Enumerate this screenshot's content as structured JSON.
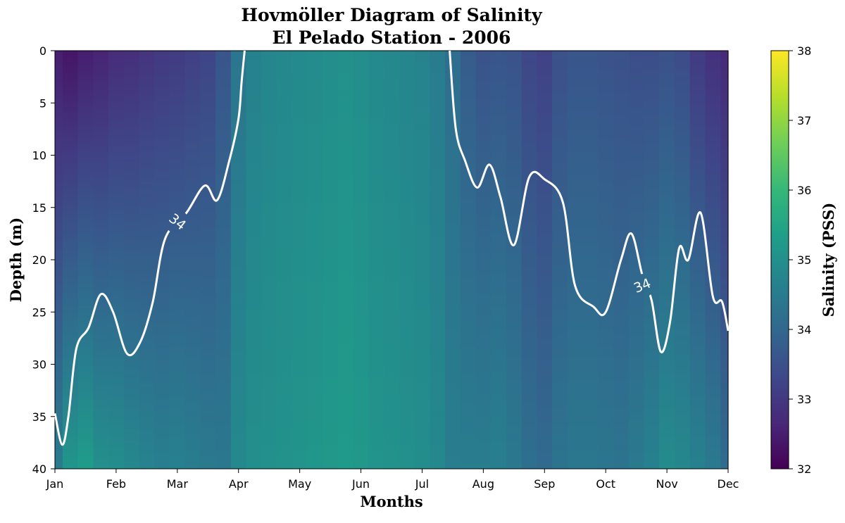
{
  "chart_data": {
    "type": "heatmap",
    "title": "Hovmöller Diagram of Salinity",
    "subtitle": "El Pelado Station - 2006",
    "xlabel": "Months",
    "ylabel": "Depth (m)",
    "colorbar_label": "Salinity (PSS)",
    "colormap": "viridis",
    "colormap_stops": [
      "#440154",
      "#482878",
      "#3e4989",
      "#31688e",
      "#26828e",
      "#1f9e89",
      "#35b779",
      "#6ece58",
      "#b5de2b",
      "#fde725"
    ],
    "x_ticks": [
      "Jan",
      "Feb",
      "Mar",
      "Apr",
      "May",
      "Jun",
      "Jul",
      "Aug",
      "Sep",
      "Oct",
      "Nov",
      "Dec"
    ],
    "xlim": [
      0,
      11
    ],
    "y_ticks": [
      0,
      5,
      10,
      15,
      20,
      25,
      30,
      35,
      40
    ],
    "ylim": [
      0,
      40
    ],
    "y_inverted": true,
    "colorbar_ticks": [
      32,
      33,
      34,
      35,
      36,
      37,
      38
    ],
    "clim": [
      32,
      38
    ],
    "salinity_field": {
      "month_index": [
        0,
        0.25,
        0.5,
        0.75,
        1,
        1.25,
        1.5,
        1.75,
        2,
        2.25,
        2.5,
        2.75,
        3,
        3.25,
        3.5,
        3.75,
        4,
        4.25,
        4.5,
        4.75,
        5,
        5.25,
        5.5,
        5.75,
        6,
        6.25,
        6.5,
        6.75,
        7,
        7.25,
        7.5,
        7.75,
        8,
        8.25,
        8.5,
        8.75,
        9,
        9.25,
        9.5,
        9.75,
        10,
        10.25,
        10.5,
        10.75,
        11
      ],
      "surface_salinity": [
        32.5,
        32.35,
        32.5,
        32.6,
        32.75,
        32.8,
        32.9,
        33.0,
        33.05,
        33.15,
        33.25,
        33.6,
        34.35,
        34.65,
        34.75,
        34.8,
        34.85,
        34.9,
        34.95,
        35.0,
        34.95,
        34.85,
        34.8,
        34.75,
        34.7,
        34.5,
        34.15,
        33.75,
        33.55,
        33.6,
        33.55,
        33.3,
        33.2,
        33.5,
        33.6,
        33.6,
        33.55,
        33.5,
        33.45,
        33.45,
        33.5,
        33.4,
        33.05,
        32.85,
        32.7
      ],
      "gradient_psu_per_m": [
        0.05,
        0.07,
        0.07,
        0.06,
        0.055,
        0.05,
        0.045,
        0.04,
        0.04,
        0.035,
        0.03,
        0.02,
        0.012,
        0.008,
        0.006,
        0.006,
        0.006,
        0.006,
        0.006,
        0.006,
        0.006,
        0.006,
        0.006,
        0.006,
        0.006,
        0.008,
        0.01,
        0.02,
        0.025,
        0.025,
        0.022,
        0.022,
        0.022,
        0.02,
        0.02,
        0.02,
        0.02,
        0.02,
        0.025,
        0.03,
        0.035,
        0.035,
        0.04,
        0.04,
        0.035
      ]
    },
    "contour": {
      "level": 34,
      "label": "34",
      "color": "#ffffff",
      "branch_1": [
        [
          0.0,
          34.7
        ],
        [
          0.12,
          37.7
        ],
        [
          0.22,
          35.0
        ],
        [
          0.35,
          28.5
        ],
        [
          0.55,
          26.5
        ],
        [
          0.75,
          23.3
        ],
        [
          0.95,
          25.0
        ],
        [
          1.18,
          29.0
        ],
        [
          1.4,
          27.8
        ],
        [
          1.6,
          24.0
        ],
        [
          1.8,
          18.0
        ],
        [
          2.15,
          15.5
        ],
        [
          2.45,
          12.9
        ],
        [
          2.65,
          14.3
        ],
        [
          2.85,
          10.5
        ],
        [
          3.0,
          6.5
        ],
        [
          3.05,
          3.0
        ],
        [
          3.1,
          0.0
        ]
      ],
      "branch_2": [
        [
          6.45,
          0.0
        ],
        [
          6.55,
          7.5
        ],
        [
          6.7,
          10.5
        ],
        [
          6.9,
          13.1
        ],
        [
          7.1,
          10.9
        ],
        [
          7.28,
          14.0
        ],
        [
          7.5,
          18.6
        ],
        [
          7.75,
          12.1
        ],
        [
          8.0,
          12.3
        ],
        [
          8.3,
          14.5
        ],
        [
          8.5,
          22.5
        ],
        [
          8.8,
          24.5
        ],
        [
          9.0,
          25.0
        ],
        [
          9.25,
          20.0
        ],
        [
          9.42,
          17.5
        ],
        [
          9.6,
          21.5
        ],
        [
          9.75,
          23.9
        ],
        [
          9.9,
          28.8
        ],
        [
          10.05,
          26.0
        ],
        [
          10.2,
          18.9
        ],
        [
          10.35,
          20.0
        ],
        [
          10.55,
          15.5
        ],
        [
          10.75,
          23.5
        ],
        [
          10.9,
          24.0
        ],
        [
          11.0,
          26.8
        ]
      ],
      "label_positions": [
        [
          2.0,
          16.4
        ],
        [
          9.6,
          22.5
        ]
      ]
    }
  }
}
